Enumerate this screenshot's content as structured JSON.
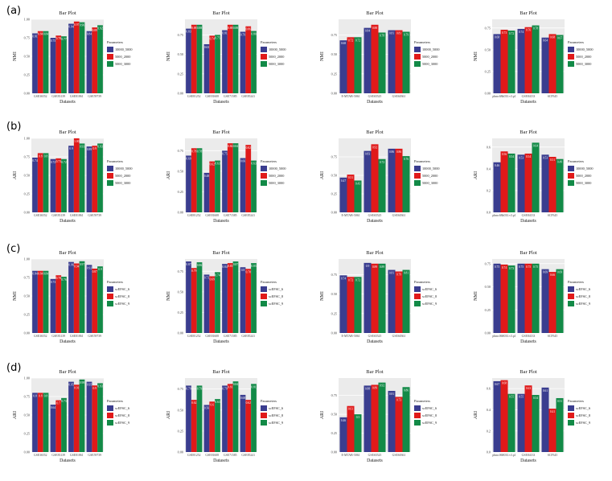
{
  "rows": [
    {
      "label": "(a)",
      "metric": "NMI"
    },
    {
      "label": "(b)",
      "metric": "ARI"
    },
    {
      "label": "(c)",
      "metric": "NMI"
    },
    {
      "label": "(d)",
      "metric": "ARI"
    }
  ],
  "colors": {
    "series1": "#3a3d8f",
    "series2": "#e01a1a",
    "series3": "#128a47",
    "panel_bg": "#ebebeb",
    "grid": "#ffffff"
  },
  "chart_data": [
    {
      "type": "bar",
      "title": "Bar Plot",
      "xlabel": "Datasets",
      "ylabel": "NMI",
      "ylim": [
        0,
        1.0
      ],
      "yticks": [
        "0.00",
        "0.25",
        "0.50",
        "0.75",
        "1.00"
      ],
      "categories": [
        "GSE36552",
        "GSE83139",
        "GSE81861",
        "GSE59739"
      ],
      "legend_title": "Parameters",
      "legend_position": "right",
      "grid": true,
      "series": [
        {
          "name": "10000_5000",
          "values": [
            0.81,
            0.75,
            0.94,
            0.84
          ]
        },
        {
          "name": "5000_2000",
          "values": [
            0.84,
            0.78,
            0.97,
            0.89
          ]
        },
        {
          "name": "5000_3000",
          "values": [
            0.84,
            0.77,
            0.96,
            0.92
          ]
        }
      ],
      "data_labels": [
        [
          "0.81",
          "0.84",
          "0.84"
        ],
        [
          "0.75",
          "0.78",
          "0.77"
        ],
        [
          "0.94",
          "0.97",
          "0.96"
        ],
        [
          "0.84",
          "0.89",
          "0.92"
        ]
      ]
    },
    {
      "type": "bar",
      "title": "Bar Plot",
      "xlabel": "Datasets",
      "ylabel": "NMI",
      "ylim": [
        0,
        0.95
      ],
      "yticks": [
        "0.00",
        "0.25",
        "0.50",
        "0.75"
      ],
      "categories": [
        "GSE81252",
        "GSE81608",
        "GSE71585",
        "GSE85241"
      ],
      "legend_title": "Parameters",
      "legend_position": "right",
      "grid": true,
      "series": [
        {
          "name": "10000_5000",
          "values": [
            0.83,
            0.63,
            0.81,
            0.79
          ]
        },
        {
          "name": "5000_2000",
          "values": [
            0.88,
            0.74,
            0.88,
            0.86
          ]
        },
        {
          "name": "5000_3000",
          "values": [
            0.88,
            0.75,
            0.88,
            0.8
          ]
        }
      ],
      "data_labels": [
        [
          "0.83",
          "0.88",
          "0.88"
        ],
        [
          "0.63",
          "0.74",
          "0.75"
        ],
        [
          "0.81",
          "0.88",
          "0.88"
        ],
        [
          "0.79",
          "0.86",
          "0.80"
        ]
      ]
    },
    {
      "type": "bar",
      "title": "Bar Plot",
      "xlabel": "Datasets",
      "ylabel": "NMI",
      "ylim": [
        0,
        0.95
      ],
      "yticks": [
        "0.00",
        "0.25",
        "0.50",
        "0.75"
      ],
      "categories": [
        "E-MTAB-5061",
        "GSE65525",
        "GSE60361"
      ],
      "legend_title": "Parameters",
      "legend_position": "right",
      "grid": true,
      "series": [
        {
          "name": "10000_5000",
          "values": [
            0.68,
            0.84,
            0.81
          ]
        },
        {
          "name": "5000_2000",
          "values": [
            0.72,
            0.88,
            0.81
          ]
        },
        {
          "name": "5000_3000",
          "values": [
            0.72,
            0.78,
            0.79
          ]
        }
      ],
      "data_labels": [
        [
          "0.68",
          "0.72",
          "0.72"
        ],
        [
          "0.84",
          "0.88",
          "0.78"
        ],
        [
          "0.81",
          "0.81",
          "0.79"
        ]
      ]
    },
    {
      "type": "bar",
      "title": "Bar Plot",
      "xlabel": "Datasets",
      "ylabel": "NMI",
      "ylim": [
        0,
        0.85
      ],
      "yticks": [
        "0.00",
        "0.25",
        "0.50",
        "0.75"
      ],
      "categories": [
        "pbmc68k033.v3.p1",
        "GSE84133",
        "SCP345"
      ],
      "legend_title": "Parameters",
      "legend_position": "right",
      "grid": true,
      "series": [
        {
          "name": "10000_5000",
          "values": [
            0.68,
            0.74,
            0.64
          ]
        },
        {
          "name": "5000_2000",
          "values": [
            0.73,
            0.76,
            0.68
          ]
        },
        {
          "name": "5000_3000",
          "values": [
            0.72,
            0.78,
            0.67
          ]
        }
      ],
      "data_labels": [
        [
          "0.68",
          "0.73",
          "0.72"
        ],
        [
          "0.74",
          "0.76",
          "0.78"
        ],
        [
          "0.64",
          "0.68",
          "0.67"
        ]
      ]
    },
    {
      "type": "bar",
      "title": "Bar Plot",
      "xlabel": "Datasets",
      "ylabel": "ARI",
      "ylim": [
        0,
        1.0
      ],
      "yticks": [
        "0.00",
        "0.25",
        "0.50",
        "0.75",
        "1.00"
      ],
      "categories": [
        "GSE36552",
        "GSE83139",
        "GSE81861",
        "GSE59739"
      ],
      "legend_title": "Parameters",
      "legend_position": "right",
      "grid": true,
      "series": [
        {
          "name": "10000_5000",
          "values": [
            0.74,
            0.72,
            0.9,
            0.89
          ]
        },
        {
          "name": "5000_2000",
          "values": [
            0.8,
            0.73,
            1.0,
            0.9
          ]
        },
        {
          "name": "5000_3000",
          "values": [
            0.8,
            0.72,
            0.93,
            0.93
          ]
        }
      ],
      "data_labels": [
        [
          "0.74",
          "0.8",
          "0.8"
        ],
        [
          "0.72",
          "0.73",
          "0.72"
        ],
        [
          "0.9",
          "1.00",
          "0.93"
        ],
        [
          "0.89",
          "0.9",
          "0.93"
        ]
      ]
    },
    {
      "type": "bar",
      "title": "Bar Plot",
      "xlabel": "Datasets",
      "ylabel": "ARI",
      "ylim": [
        0,
        0.9
      ],
      "yticks": [
        "0.00",
        "0.25",
        "0.50",
        "0.75"
      ],
      "categories": [
        "GSE81252",
        "GSE81608",
        "GSE71585",
        "GSE85241"
      ],
      "legend_title": "Parameters",
      "legend_position": "right",
      "grid": true,
      "series": [
        {
          "name": "10000_5000",
          "values": [
            0.69,
            0.48,
            0.75,
            0.66
          ]
        },
        {
          "name": "5000_2000",
          "values": [
            0.78,
            0.62,
            0.84,
            0.82
          ]
        },
        {
          "name": "5000_3000",
          "values": [
            0.78,
            0.63,
            0.84,
            0.63
          ]
        }
      ],
      "data_labels": [
        [
          "0.69",
          "0.78",
          "0.78"
        ],
        [
          "0.48",
          "0.62",
          "0.63"
        ],
        [
          "0.75",
          "0.84",
          "0.84"
        ],
        [
          "0.66",
          "0.82",
          "0.63"
        ]
      ]
    },
    {
      "type": "bar",
      "title": "Bar Plot",
      "xlabel": "Datasets",
      "ylabel": "ARI",
      "ylim": [
        0,
        1.0
      ],
      "yticks": [
        "0.00",
        "0.25",
        "0.50",
        "0.75"
      ],
      "categories": [
        "E-MTAB-5061",
        "GSE65525",
        "GSE60361"
      ],
      "legend_title": "Parameters",
      "legend_position": "right",
      "grid": true,
      "series": [
        {
          "name": "10000_5000",
          "values": [
            0.47,
            0.83,
            0.86
          ]
        },
        {
          "name": "5000_2000",
          "values": [
            0.51,
            0.92,
            0.86
          ]
        },
        {
          "name": "5000_3000",
          "values": [
            0.43,
            0.72,
            0.76
          ]
        }
      ],
      "data_labels": [
        [
          "0.47",
          "0.51",
          "0.43"
        ],
        [
          "0.83",
          "0.92",
          "0.72"
        ],
        [
          "0.86",
          "0.86",
          "0.76"
        ]
      ]
    },
    {
      "type": "bar",
      "title": "Bar Plot",
      "xlabel": "Datasets",
      "ylabel": "ARI",
      "ylim": [
        0,
        0.68
      ],
      "yticks": [
        "0.0",
        "0.2",
        "0.4",
        "0.6"
      ],
      "categories": [
        "pbmc68k033.v3.p1",
        "GSE84133",
        "SCP345"
      ],
      "legend_title": "Parameters",
      "legend_position": "right",
      "grid": true,
      "series": [
        {
          "name": "10000_5000",
          "values": [
            0.46,
            0.53,
            0.53
          ]
        },
        {
          "name": "5000_2000",
          "values": [
            0.56,
            0.54,
            0.51
          ]
        },
        {
          "name": "5000_3000",
          "values": [
            0.54,
            0.64,
            0.49
          ]
        }
      ],
      "data_labels": [
        [
          "0.46",
          "0.56",
          "0.54"
        ],
        [
          "0.53",
          "0.54",
          "0.64"
        ],
        [
          "0.53",
          "0.51",
          "0.49"
        ]
      ]
    },
    {
      "type": "bar",
      "title": "Bar Plot",
      "xlabel": "Datasets",
      "ylabel": "NMI",
      "ylim": [
        0,
        1.0
      ],
      "yticks": [
        "0.00",
        "0.25",
        "0.50",
        "0.75",
        "1.00"
      ],
      "categories": [
        "GSE36552",
        "GSE83139",
        "GSE81861",
        "GSE59739"
      ],
      "legend_title": "Parameters",
      "legend_position": "right",
      "grid": true,
      "series": [
        {
          "name": "scEFSC_6",
          "values": [
            0.84,
            0.73,
            0.96,
            0.92
          ]
        },
        {
          "name": "scEFSC_8",
          "values": [
            0.84,
            0.78,
            0.94,
            0.87
          ]
        },
        {
          "name": "scEFSC_9",
          "values": [
            0.84,
            0.76,
            0.97,
            0.9
          ]
        }
      ],
      "data_labels": [
        [
          "0.84",
          "0.84",
          "0.84"
        ],
        [
          "0.73",
          "0.78",
          "0.76"
        ],
        [
          "0.96",
          "0.94",
          "0.97"
        ],
        [
          "0.92",
          "0.87",
          "0.9"
        ]
      ]
    },
    {
      "type": "bar",
      "title": "Bar Plot",
      "xlabel": "Datasets",
      "ylabel": "NMI",
      "ylim": [
        0,
        0.9
      ],
      "yticks": [
        "0.00",
        "0.25",
        "0.50",
        "0.75"
      ],
      "categories": [
        "GSE81252",
        "GSE81608",
        "GSE71585",
        "GSE85241"
      ],
      "legend_title": "Parameters",
      "legend_position": "right",
      "grid": true,
      "series": [
        {
          "name": "scEFSC_6",
          "values": [
            0.87,
            0.71,
            0.84,
            0.8
          ]
        },
        {
          "name": "scEFSC_8",
          "values": [
            0.79,
            0.69,
            0.85,
            0.78
          ]
        },
        {
          "name": "scEFSC_9",
          "values": [
            0.86,
            0.74,
            0.87,
            0.85
          ]
        }
      ],
      "data_labels": [
        [
          "0.87",
          "0.79",
          "0.86"
        ],
        [
          "0.71",
          "0.69",
          "0.74"
        ],
        [
          "0.84",
          "0.85",
          "0.87"
        ],
        [
          "0.8",
          "0.78",
          "0.85"
        ]
      ]
    },
    {
      "type": "bar",
      "title": "Bar Plot",
      "xlabel": "Datasets",
      "ylabel": "NMI",
      "ylim": [
        0,
        0.95
      ],
      "yticks": [
        "0.00",
        "0.25",
        "0.50",
        "0.75"
      ],
      "categories": [
        "E-MTAB-5061",
        "GSE65525",
        "GSE60361"
      ],
      "legend_title": "Parameters",
      "legend_position": "right",
      "grid": true,
      "series": [
        {
          "name": "scEFSC_6",
          "values": [
            0.74,
            0.9,
            0.81
          ]
        },
        {
          "name": "scEFSC_8",
          "values": [
            0.72,
            0.89,
            0.79
          ]
        },
        {
          "name": "scEFSC_9",
          "values": [
            0.72,
            0.89,
            0.81
          ]
        }
      ],
      "data_labels": [
        [
          "0.74",
          "0.72",
          "0.72"
        ],
        [
          "0.9",
          "0.89",
          "0.89"
        ],
        [
          "0.81",
          "0.79",
          "0.81"
        ]
      ]
    },
    {
      "type": "bar",
      "title": "Bar Plot",
      "xlabel": "Datasets",
      "ylabel": "NMI",
      "ylim": [
        0,
        0.8
      ],
      "yticks": [
        "0.00",
        "0.25",
        "0.50",
        "0.75"
      ],
      "categories": [
        "pbmc068033.v3.p1",
        "GSE84133",
        "SCP345"
      ],
      "legend_title": "Parameters",
      "legend_position": "right",
      "grid": true,
      "series": [
        {
          "name": "scEFSC_6",
          "values": [
            0.75,
            0.75,
            0.69
          ]
        },
        {
          "name": "scEFSC_8",
          "values": [
            0.74,
            0.75,
            0.66
          ]
        },
        {
          "name": "scEFSC_9",
          "values": [
            0.73,
            0.75,
            0.69
          ]
        }
      ],
      "data_labels": [
        [
          "0.75",
          "0.74",
          "0.73"
        ],
        [
          "0.75",
          "0.75",
          "0.75"
        ],
        [
          "0.69",
          "0.66",
          "0.69"
        ]
      ]
    },
    {
      "type": "bar",
      "title": "Bar Plot",
      "xlabel": "Datasets",
      "ylabel": "ARI",
      "ylim": [
        0,
        1.0
      ],
      "yticks": [
        "0.00",
        "0.25",
        "0.50",
        "0.75",
        "1.00"
      ],
      "categories": [
        "GSE36552",
        "GSE83139",
        "GSE81861",
        "GSE59739"
      ],
      "legend_title": "Parameters",
      "legend_position": "right",
      "grid": true,
      "series": [
        {
          "name": "scEFSC_6",
          "values": [
            0.8,
            0.64,
            0.95,
            0.95
          ]
        },
        {
          "name": "scEFSC_8",
          "values": [
            0.8,
            0.7,
            0.91,
            0.9
          ]
        },
        {
          "name": "scEFSC_9",
          "values": [
            0.8,
            0.73,
            0.98,
            0.93
          ]
        }
      ],
      "data_labels": [
        [
          "0.8",
          "0.8",
          "0.8"
        ],
        [
          "0.64",
          "0.7",
          "0.73"
        ],
        [
          "0.95",
          "0.91",
          "0.98"
        ],
        [
          "0.95",
          "0.9",
          "0.93"
        ]
      ]
    },
    {
      "type": "bar",
      "title": "Bar Plot",
      "xlabel": "Datasets",
      "ylabel": "ARI",
      "ylim": [
        0,
        0.88
      ],
      "yticks": [
        "0.00",
        "0.25",
        "0.50",
        "0.75"
      ],
      "categories": [
        "GSE81252",
        "GSE81608",
        "GSE71585",
        "GSE85241"
      ],
      "legend_title": "Parameters",
      "legend_position": "right",
      "grid": true,
      "series": [
        {
          "name": "scEFSC_6",
          "values": [
            0.79,
            0.56,
            0.79,
            0.68
          ]
        },
        {
          "name": "scEFSC_8",
          "values": [
            0.62,
            0.6,
            0.81,
            0.62
          ]
        },
        {
          "name": "scEFSC_9",
          "values": [
            0.79,
            0.63,
            0.84,
            0.81
          ]
        }
      ],
      "data_labels": [
        [
          "0.79",
          "0.62",
          "0.79"
        ],
        [
          "0.56",
          "0.6",
          "0.63"
        ],
        [
          "0.79",
          "0.81",
          "0.84"
        ],
        [
          "0.68",
          "0.62",
          "0.81"
        ]
      ]
    },
    {
      "type": "bar",
      "title": "Bar Plot",
      "xlabel": "Datasets",
      "ylabel": "ARI",
      "ylim": [
        0,
        0.98
      ],
      "yticks": [
        "0.00",
        "0.25",
        "0.50",
        "0.75"
      ],
      "categories": [
        "E-MTAB-5061",
        "GSE65525",
        "GSE60361"
      ],
      "legend_title": "Parameters",
      "legend_position": "right",
      "grid": true,
      "series": [
        {
          "name": "scEFSC_6",
          "values": [
            0.46,
            0.88,
            0.81
          ]
        },
        {
          "name": "scEFSC_8",
          "values": [
            0.61,
            0.89,
            0.73
          ]
        },
        {
          "name": "scEFSC_9",
          "values": [
            0.5,
            0.92,
            0.86
          ]
        }
      ],
      "data_labels": [
        [
          "0.46",
          "0.61",
          "0.5"
        ],
        [
          "0.88",
          "0.89",
          "0.92"
        ],
        [
          "0.81",
          "0.73",
          "0.86"
        ]
      ]
    },
    {
      "type": "bar",
      "title": "Bar Plot",
      "xlabel": "Datasets",
      "ylabel": "ARI",
      "ylim": [
        0,
        0.7
      ],
      "yticks": [
        "0.0",
        "0.2",
        "0.4",
        "0.6"
      ],
      "categories": [
        "pbmc068033.v3.p1",
        "GSE84133",
        "SCP345"
      ],
      "legend_title": "Parameters",
      "legend_position": "right",
      "grid": true,
      "series": [
        {
          "name": "scEFSC_6",
          "values": [
            0.67,
            0.55,
            0.61
          ]
        },
        {
          "name": "scEFSC_8",
          "values": [
            0.68,
            0.63,
            0.41
          ]
        },
        {
          "name": "scEFSC_9",
          "values": [
            0.55,
            0.54,
            0.51
          ]
        }
      ],
      "data_labels": [
        [
          "0.67",
          "0.68",
          "0.55"
        ],
        [
          "0.55",
          "0.63",
          "0.54"
        ],
        [
          "0.61",
          "0.41",
          "0.51"
        ]
      ]
    }
  ]
}
